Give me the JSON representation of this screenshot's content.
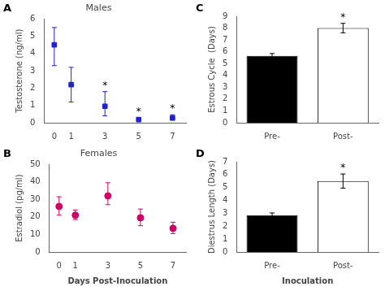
{
  "chart_data": [
    {
      "type": "scatter",
      "title": "Males",
      "x": [
        0,
        1,
        3,
        5,
        7
      ],
      "values": [
        4.5,
        2.2,
        0.95,
        0.18,
        0.28
      ],
      "yerr_upper": [
        1.0,
        1.0,
        0.85,
        0.13,
        0.18
      ],
      "yerr_lower": [
        1.2,
        1.0,
        0.55,
        0.1,
        0.13
      ],
      "ylabel": "Testosterone (ng/ml)",
      "xlim": [
        -0.6,
        7.8
      ],
      "xticks": [
        0,
        1,
        3,
        5,
        7
      ],
      "ylim": [
        0,
        6
      ],
      "yticks": [
        0,
        1,
        2,
        3,
        4,
        5,
        6
      ],
      "color": "#2222cc",
      "marker": "square",
      "grid": false,
      "annotations": [
        {
          "text": "A"
        },
        {
          "x": 3,
          "text": "*"
        },
        {
          "x": 5,
          "text": "*"
        },
        {
          "x": 7,
          "text": "*"
        }
      ]
    },
    {
      "type": "scatter",
      "title": "Females",
      "x": [
        0,
        1,
        3,
        5,
        7
      ],
      "values": [
        26,
        21,
        32,
        19.5,
        13.5
      ],
      "yerr_upper": [
        5.5,
        3.0,
        7.5,
        5.0,
        3.5
      ],
      "yerr_lower": [
        5.0,
        2.5,
        5.0,
        4.5,
        3.0
      ],
      "ylabel": "Estradiol (pg/ml)",
      "xlabel": "Days Post-Inoculation",
      "xlim": [
        -0.6,
        7.8
      ],
      "xticks": [
        0,
        1,
        3,
        5,
        7
      ],
      "ylim": [
        0,
        50
      ],
      "yticks": [
        0,
        10,
        20,
        30,
        40,
        50
      ],
      "color": "#cc0066",
      "marker": "circle",
      "grid": false,
      "annotations": [
        {
          "text": "B"
        }
      ]
    },
    {
      "type": "bar",
      "categories": [
        "Pre-",
        "Post-"
      ],
      "values": [
        5.65,
        8.0
      ],
      "yerr": [
        0.2,
        0.4
      ],
      "ylabel": "Estrous Cycle  (Days)",
      "ylim": [
        0,
        9
      ],
      "yticks": [
        0,
        1,
        2,
        3,
        4,
        5,
        6,
        7,
        8,
        9
      ],
      "colors": [
        "black",
        "white"
      ],
      "grid": false,
      "annotations": [
        {
          "text": "C"
        },
        {
          "category": "Post-",
          "text": "*"
        }
      ]
    },
    {
      "type": "bar",
      "categories": [
        "Pre-",
        "Post-"
      ],
      "values": [
        2.85,
        5.5
      ],
      "yerr": [
        0.18,
        0.55
      ],
      "ylabel": "Diestrus Length (Days)",
      "xlabel": "Inoculation",
      "ylim": [
        0,
        7
      ],
      "yticks": [
        0,
        1,
        2,
        3,
        4,
        5,
        6,
        7
      ],
      "colors": [
        "black",
        "white"
      ],
      "grid": false,
      "annotations": [
        {
          "text": "D"
        },
        {
          "category": "Post-",
          "text": "*"
        }
      ]
    }
  ]
}
